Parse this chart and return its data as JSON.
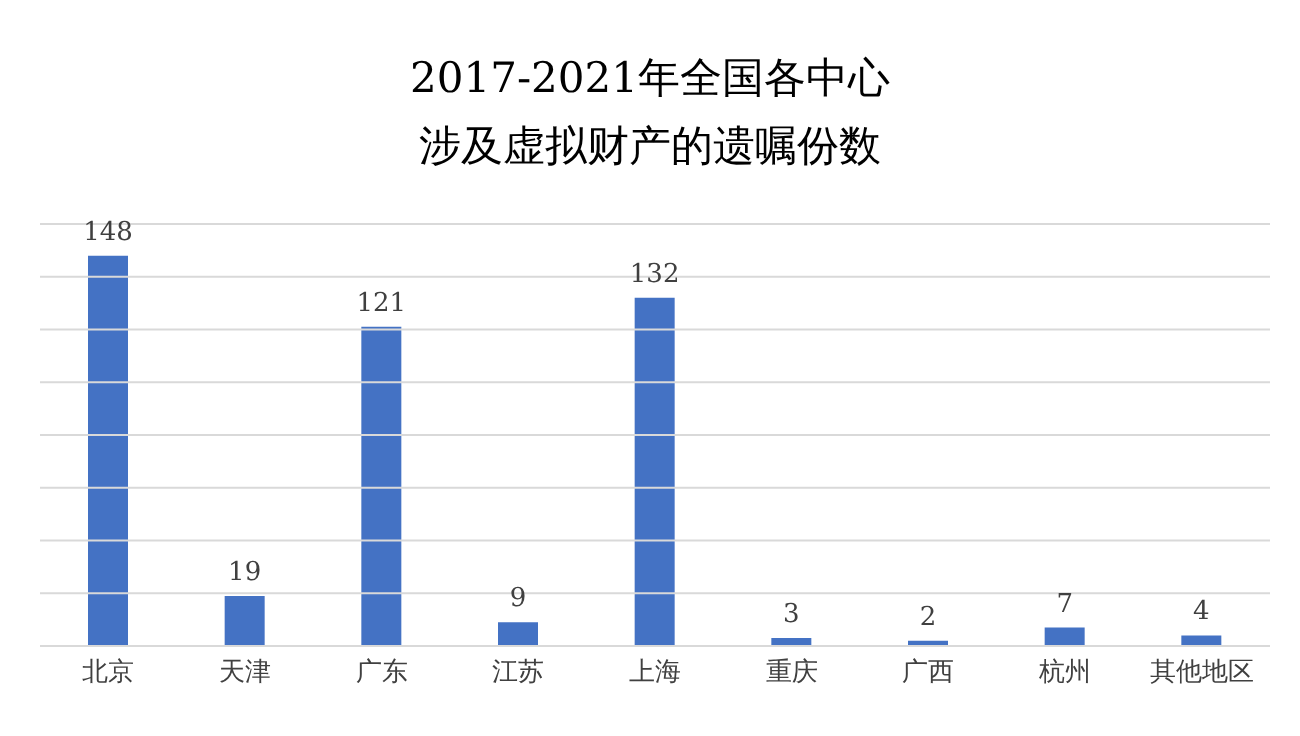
{
  "chart_data": {
    "type": "bar",
    "title": "2017-2021年全国各中心涉及虚拟财产的遗嘱份数",
    "categories": [
      "北京",
      "天津",
      "广东",
      "江苏",
      "上海",
      "重庆",
      "广西",
      "杭州",
      "其他地区"
    ],
    "values": [
      148,
      19,
      121,
      9,
      132,
      3,
      2,
      7,
      4
    ],
    "color": "#4472c4",
    "ylim": [
      0,
      160
    ],
    "yticks": [
      {
        "value": 0,
        "label": null
      },
      {
        "value": 20,
        "label": null
      },
      {
        "value": 40,
        "label": null
      },
      {
        "value": 60,
        "label": null
      },
      {
        "value": 80,
        "label": null
      },
      {
        "value": 100,
        "label": null
      },
      {
        "value": 120,
        "label": null
      },
      {
        "value": 140,
        "label": null
      },
      {
        "value": 160,
        "label": null
      }
    ],
    "tick_labels": "x",
    "grid": "y",
    "data_labels": true,
    "legend": false
  }
}
